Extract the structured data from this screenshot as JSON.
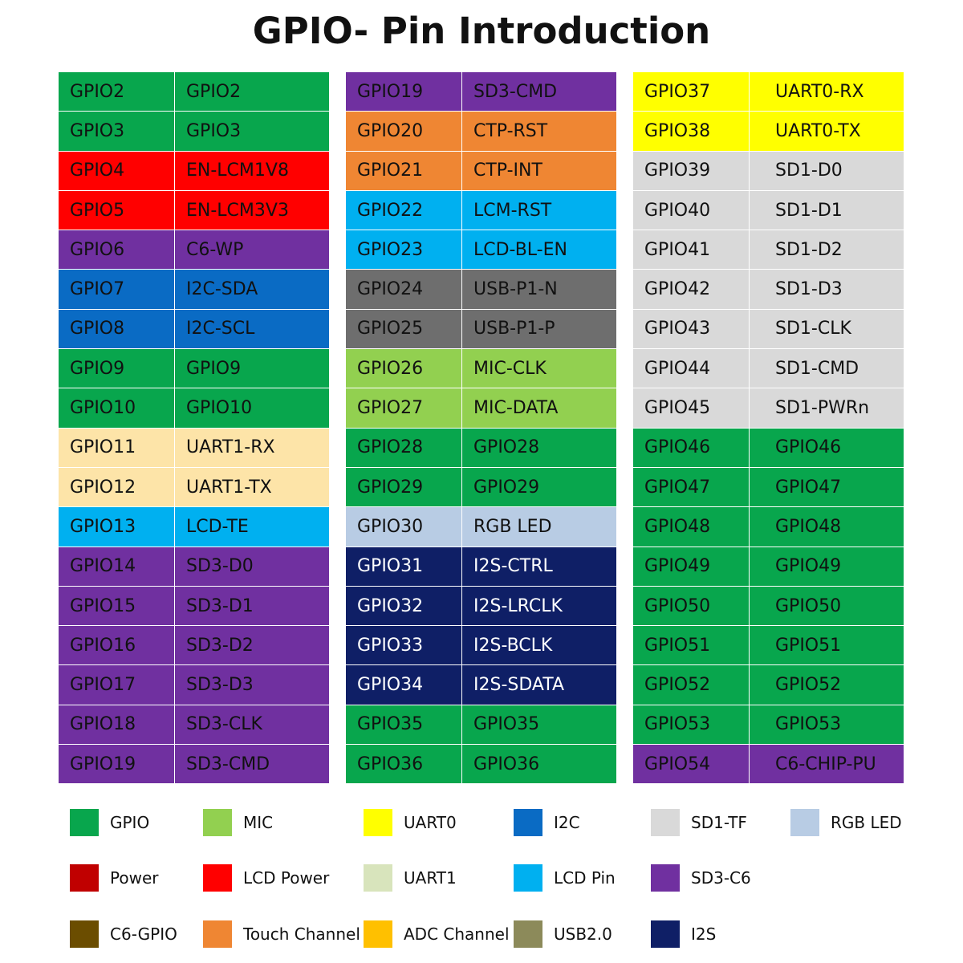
{
  "title": "GPIO- Pin Introduction",
  "colors": {
    "GPIO": "#08a64d",
    "MIC": "#92d050",
    "UART0": "#ffff00",
    "I2C": "#0a6bc4",
    "SD1-TF": "#d9d9d9",
    "RGB LED": "#b8cce4",
    "Power": "#c00000",
    "LCD Power": "#ff0000",
    "UART1": "#d8e4bc",
    "UART1-row": "#fde4a8",
    "LCD Pin": "#00b0f0",
    "SD3-C6": "#7030a0",
    "C6-GPIO": "#6b4d00",
    "Touch Channel": "#ef8633",
    "ADC Channel": "#ffc000",
    "USB2.0": "#8c8a5a",
    "USB-row": "#6e6e6e",
    "I2S": "#0f1f66"
  },
  "columns": [
    {
      "rows": [
        {
          "pin": "GPIO2",
          "func": "GPIO2",
          "group": "GPIO"
        },
        {
          "pin": "GPIO3",
          "func": "GPIO3",
          "group": "GPIO"
        },
        {
          "pin": "GPIO4",
          "func": "EN-LCM1V8",
          "group": "LCD Power"
        },
        {
          "pin": "GPIO5",
          "func": "EN-LCM3V3",
          "group": "LCD Power"
        },
        {
          "pin": "GPIO6",
          "func": "C6-WP",
          "group": "SD3-C6"
        },
        {
          "pin": "GPIO7",
          "func": "I2C-SDA",
          "group": "I2C"
        },
        {
          "pin": "GPIO8",
          "func": "I2C-SCL",
          "group": "I2C"
        },
        {
          "pin": "GPIO9",
          "func": "GPIO9",
          "group": "GPIO"
        },
        {
          "pin": "GPIO10",
          "func": "GPIO10",
          "group": "GPIO"
        },
        {
          "pin": "GPIO11",
          "func": "UART1-RX",
          "group": "UART1-row"
        },
        {
          "pin": "GPIO12",
          "func": "UART1-TX",
          "group": "UART1-row"
        },
        {
          "pin": "GPIO13",
          "func": "LCD-TE",
          "group": "LCD Pin"
        },
        {
          "pin": "GPIO14",
          "func": "SD3-D0",
          "group": "SD3-C6"
        },
        {
          "pin": "GPIO15",
          "func": "SD3-D1",
          "group": "SD3-C6"
        },
        {
          "pin": "GPIO16",
          "func": "SD3-D2",
          "group": "SD3-C6"
        },
        {
          "pin": "GPIO17",
          "func": "SD3-D3",
          "group": "SD3-C6"
        },
        {
          "pin": "GPIO18",
          "func": "SD3-CLK",
          "group": "SD3-C6"
        },
        {
          "pin": "GPIO19",
          "func": "SD3-CMD",
          "group": "SD3-C6"
        }
      ]
    },
    {
      "rows": [
        {
          "pin": "GPIO19",
          "func": "SD3-CMD",
          "group": "SD3-C6"
        },
        {
          "pin": "GPIO20",
          "func": "CTP-RST",
          "group": "Touch Channel"
        },
        {
          "pin": "GPIO21",
          "func": "CTP-INT",
          "group": "Touch Channel"
        },
        {
          "pin": "GPIO22",
          "func": "LCM-RST",
          "group": "LCD Pin"
        },
        {
          "pin": "GPIO23",
          "func": "LCD-BL-EN",
          "group": "LCD Pin"
        },
        {
          "pin": "GPIO24",
          "func": "USB-P1-N",
          "group": "USB-row"
        },
        {
          "pin": "GPIO25",
          "func": "USB-P1-P",
          "group": "USB-row"
        },
        {
          "pin": "GPIO26",
          "func": "MIC-CLK",
          "group": "MIC"
        },
        {
          "pin": "GPIO27",
          "func": "MIC-DATA",
          "group": "MIC"
        },
        {
          "pin": "GPIO28",
          "func": "GPIO28",
          "group": "GPIO"
        },
        {
          "pin": "GPIO29",
          "func": "GPIO29",
          "group": "GPIO"
        },
        {
          "pin": "GPIO30",
          "func": "RGB LED",
          "group": "RGB LED"
        },
        {
          "pin": "GPIO31",
          "func": "I2S-CTRL",
          "group": "I2S"
        },
        {
          "pin": "GPIO32",
          "func": "I2S-LRCLK",
          "group": "I2S"
        },
        {
          "pin": "GPIO33",
          "func": "I2S-BCLK",
          "group": "I2S"
        },
        {
          "pin": "GPIO34",
          "func": "I2S-SDATA",
          "group": "I2S"
        },
        {
          "pin": "GPIO35",
          "func": "GPIO35",
          "group": "GPIO"
        },
        {
          "pin": "GPIO36",
          "func": "GPIO36",
          "group": "GPIO"
        }
      ]
    },
    {
      "rows": [
        {
          "pin": "GPIO37",
          "func": "UART0-RX",
          "group": "UART0"
        },
        {
          "pin": "GPIO38",
          "func": "UART0-TX",
          "group": "UART0"
        },
        {
          "pin": "GPIO39",
          "func": "SD1-D0",
          "group": "SD1-TF"
        },
        {
          "pin": "GPIO40",
          "func": "SD1-D1",
          "group": "SD1-TF"
        },
        {
          "pin": "GPIO41",
          "func": "SD1-D2",
          "group": "SD1-TF"
        },
        {
          "pin": "GPIO42",
          "func": "SD1-D3",
          "group": "SD1-TF"
        },
        {
          "pin": "GPIO43",
          "func": "SD1-CLK",
          "group": "SD1-TF"
        },
        {
          "pin": "GPIO44",
          "func": "SD1-CMD",
          "group": "SD1-TF"
        },
        {
          "pin": "GPIO45",
          "func": "SD1-PWRn",
          "group": "SD1-TF"
        },
        {
          "pin": "GPIO46",
          "func": "GPIO46",
          "group": "GPIO"
        },
        {
          "pin": "GPIO47",
          "func": "GPIO47",
          "group": "GPIO"
        },
        {
          "pin": "GPIO48",
          "func": "GPIO48",
          "group": "GPIO"
        },
        {
          "pin": "GPIO49",
          "func": "GPIO49",
          "group": "GPIO"
        },
        {
          "pin": "GPIO50",
          "func": "GPIO50",
          "group": "GPIO"
        },
        {
          "pin": "GPIO51",
          "func": "GPIO51",
          "group": "GPIO"
        },
        {
          "pin": "GPIO52",
          "func": "GPIO52",
          "group": "GPIO"
        },
        {
          "pin": "GPIO53",
          "func": "GPIO53",
          "group": "GPIO"
        },
        {
          "pin": "GPIO54",
          "func": "C6-CHIP-PU",
          "group": "SD3-C6"
        }
      ]
    }
  ],
  "legend": [
    {
      "label": "GPIO",
      "color": "#08a64d"
    },
    {
      "label": "MIC",
      "color": "#92d050"
    },
    {
      "label": "UART0",
      "color": "#ffff00"
    },
    {
      "label": "I2C",
      "color": "#0a6bc4"
    },
    {
      "label": "SD1-TF",
      "color": "#d9d9d9"
    },
    {
      "label": "RGB LED",
      "color": "#b8cce4"
    },
    {
      "label": "Power",
      "color": "#c00000"
    },
    {
      "label": "LCD Power",
      "color": "#ff0000"
    },
    {
      "label": "UART1",
      "color": "#d8e4bc"
    },
    {
      "label": "LCD Pin",
      "color": "#00b0f0"
    },
    {
      "label": "SD3-C6",
      "color": "#7030a0"
    },
    {
      "label": "C6-GPIO",
      "color": "#6b4d00"
    },
    {
      "label": "Touch Channel",
      "color": "#ef8633"
    },
    {
      "label": "ADC Channel",
      "color": "#ffc000"
    },
    {
      "label": "USB2.0",
      "color": "#8c8a5a"
    },
    {
      "label": "I2S",
      "color": "#0f1f66"
    }
  ]
}
